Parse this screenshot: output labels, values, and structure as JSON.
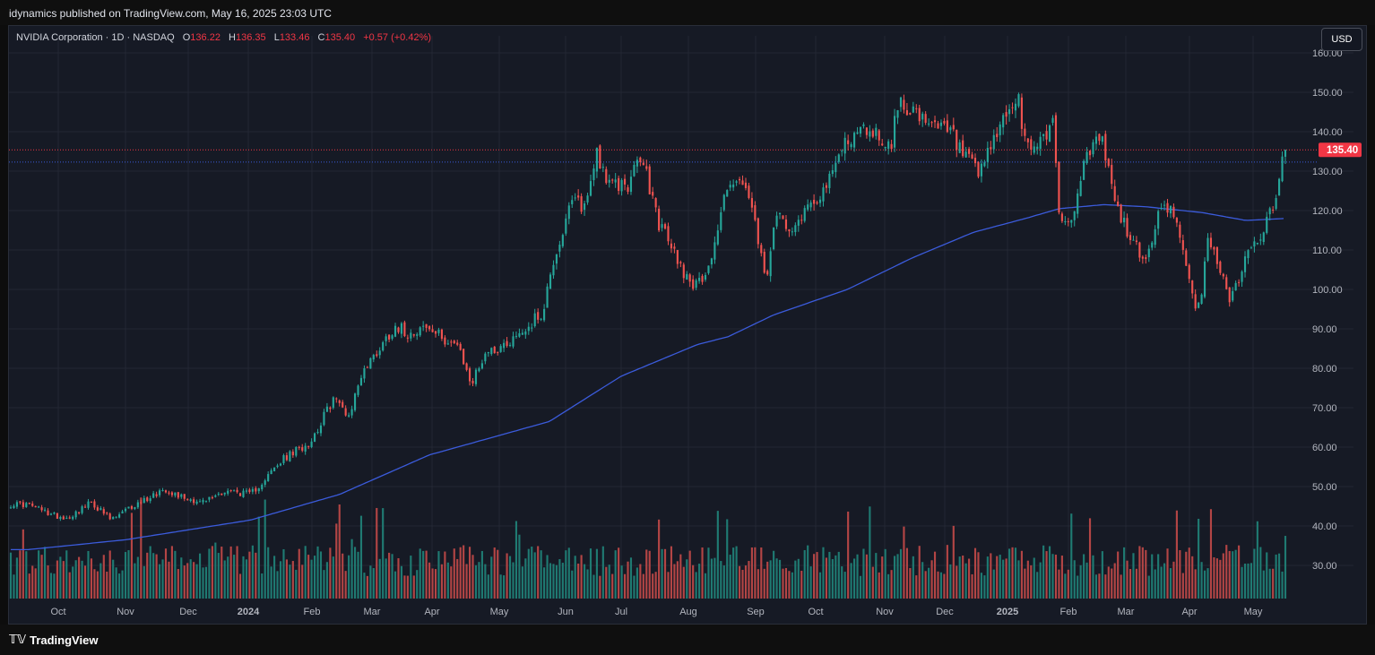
{
  "publisher_line": "idynamics published on TradingView.com, May 16, 2025 23:03 UTC",
  "legend": {
    "symbol": "NVIDIA Corporation · 1D · NASDAQ",
    "open_label": "O",
    "open": "136.22",
    "high_label": "H",
    "high": "136.35",
    "low_label": "L",
    "low": "133.46",
    "close_label": "C",
    "close": "135.40",
    "change": "+0.57 (+0.42%)"
  },
  "currency_button": "USD",
  "last_price_label": "135.40",
  "brand": "TradingView",
  "colors": {
    "up": "#26a69a",
    "down": "#ef5350",
    "ma": "#3b5bdb",
    "price_tag": "#f23645",
    "grid": "#232734",
    "axis_text": "#b2b5be"
  },
  "chart_data": {
    "type": "candlestick",
    "instrument": "NVIDIA Corporation",
    "interval": "1D",
    "exchange": "NASDAQ",
    "currency": "USD",
    "ylim": [
      20,
      160
    ],
    "y_ticks": [
      "30.00",
      "40.00",
      "50.00",
      "60.00",
      "70.00",
      "80.00",
      "90.00",
      "100.00",
      "110.00",
      "120.00",
      "130.00",
      "140.00",
      "150.00",
      "160.00"
    ],
    "x_ticks": [
      "Oct",
      "Nov",
      "Dec",
      "2024",
      "Feb",
      "Mar",
      "Apr",
      "May",
      "Jun",
      "Jul",
      "Aug",
      "Sep",
      "Oct",
      "Nov",
      "Dec",
      "2025",
      "Feb",
      "Mar",
      "Apr",
      "May"
    ],
    "last_price": 135.4,
    "reference_line": 132.3,
    "price_anchors": [
      [
        "Sep 18",
        45.5
      ],
      [
        "Sep 28",
        43.0
      ],
      [
        "Oct 5",
        42.0
      ],
      [
        "Oct 16",
        46.0
      ],
      [
        "Oct 25",
        41.5
      ],
      [
        "Nov 3",
        44.5
      ],
      [
        "Nov 20",
        49.5
      ],
      [
        "Nov 28",
        47.5
      ],
      [
        "Dec 8",
        46.0
      ],
      [
        "Dec 20",
        49.0
      ],
      [
        "Jan 2",
        48.0
      ],
      [
        "Jan 18",
        57.0
      ],
      [
        "Jan 31",
        61.5
      ],
      [
        "Feb 12",
        72.5
      ],
      [
        "Feb 20",
        68.0
      ],
      [
        "Feb 26",
        78.5
      ],
      [
        "Mar 8",
        87.5
      ],
      [
        "Mar 13",
        91.0
      ],
      [
        "Mar 19",
        89.0
      ],
      [
        "Mar 27",
        90.5
      ],
      [
        "Apr 5",
        88.0
      ],
      [
        "Apr 12",
        86.0
      ],
      [
        "Apr 19",
        76.0
      ],
      [
        "Apr 25",
        84.0
      ],
      [
        "May 2",
        85.5
      ],
      [
        "May 14",
        90.5
      ],
      [
        "May 22",
        95.0
      ],
      [
        "May 24",
        104.0
      ],
      [
        "Jun 5",
        122.5
      ],
      [
        "Jun 12",
        121.0
      ],
      [
        "Jun 18",
        135.5
      ],
      [
        "Jun 25",
        126.0
      ],
      [
        "Jul 5",
        127.0
      ],
      [
        "Jul 10",
        134.0
      ],
      [
        "Jul 18",
        117.0
      ],
      [
        "Jul 30",
        104.0
      ],
      [
        "Aug 5",
        100.5
      ],
      [
        "Aug 12",
        109.0
      ],
      [
        "Aug 19",
        128.0
      ],
      [
        "Aug 28",
        125.0
      ],
      [
        "Sep 6",
        102.0
      ],
      [
        "Sep 12",
        119.0
      ],
      [
        "Sep 20",
        116.0
      ],
      [
        "Sep 27",
        121.0
      ],
      [
        "Oct 7",
        127.0
      ],
      [
        "Oct 14",
        138.0
      ],
      [
        "Oct 25",
        141.0
      ],
      [
        "Nov 4",
        136.0
      ],
      [
        "Nov 8",
        147.5
      ],
      [
        "Nov 14",
        146.5
      ],
      [
        "Nov 22",
        141.0
      ],
      [
        "Dec 3",
        140.5
      ],
      [
        "Dec 10",
        134.0
      ],
      [
        "Dec 18",
        128.5
      ],
      [
        "Dec 26",
        139.5
      ],
      [
        "Jan 6",
        149.0
      ],
      [
        "Jan 10",
        135.5
      ],
      [
        "Jan 17",
        137.5
      ],
      [
        "Jan 24",
        142.5
      ],
      [
        "Jan 27",
        118.5
      ],
      [
        "Feb 3",
        116.5
      ],
      [
        "Feb 7",
        129.0
      ],
      [
        "Feb 18",
        139.5
      ],
      [
        "Feb 27",
        120.0
      ],
      [
        "Mar 6",
        110.5
      ],
      [
        "Mar 10",
        106.5
      ],
      [
        "Mar 17",
        119.5
      ],
      [
        "Mar 25",
        120.5
      ],
      [
        "Mar 28",
        109.5
      ],
      [
        "Apr 4",
        94.0
      ],
      [
        "Apr 7",
        97.5
      ],
      [
        "Apr 9",
        114.5
      ],
      [
        "Apr 16",
        104.5
      ],
      [
        "Apr 21",
        96.9
      ],
      [
        "Apr 28",
        108.5
      ],
      [
        "May 1",
        111.0
      ],
      [
        "May 7",
        117.0
      ],
      [
        "May 12",
        123.0
      ],
      [
        "May 14",
        135.3
      ],
      [
        "May 16",
        135.4
      ]
    ],
    "series": [
      {
        "name": "",
        "kind": "moving_average",
        "anchors": [
          [
            "Sep 18",
            34.0
          ],
          [
            "Nov 1",
            36.5
          ],
          [
            "Jan 2",
            41.5
          ],
          [
            "Feb 15",
            48.0
          ],
          [
            "Mar 30",
            58.0
          ],
          [
            "May 24",
            66.5
          ],
          [
            "Jul 1",
            78.0
          ],
          [
            "Aug 5",
            86.0
          ],
          [
            "Aug 19",
            88.0
          ],
          [
            "Sep 10",
            93.5
          ],
          [
            "Oct 15",
            100.0
          ],
          [
            "Nov 15",
            108.0
          ],
          [
            "Dec 15",
            114.5
          ],
          [
            "Jan 10",
            118.0
          ],
          [
            "Jan 27",
            120.5
          ],
          [
            "Feb 20",
            121.5
          ],
          [
            "Mar 10",
            121.0
          ],
          [
            "Apr 7",
            119.5
          ],
          [
            "Apr 28",
            117.5
          ],
          [
            "May 16",
            118.0
          ]
        ]
      },
      {
        "name": "",
        "kind": "volume",
        "unit": "relative"
      }
    ]
  }
}
